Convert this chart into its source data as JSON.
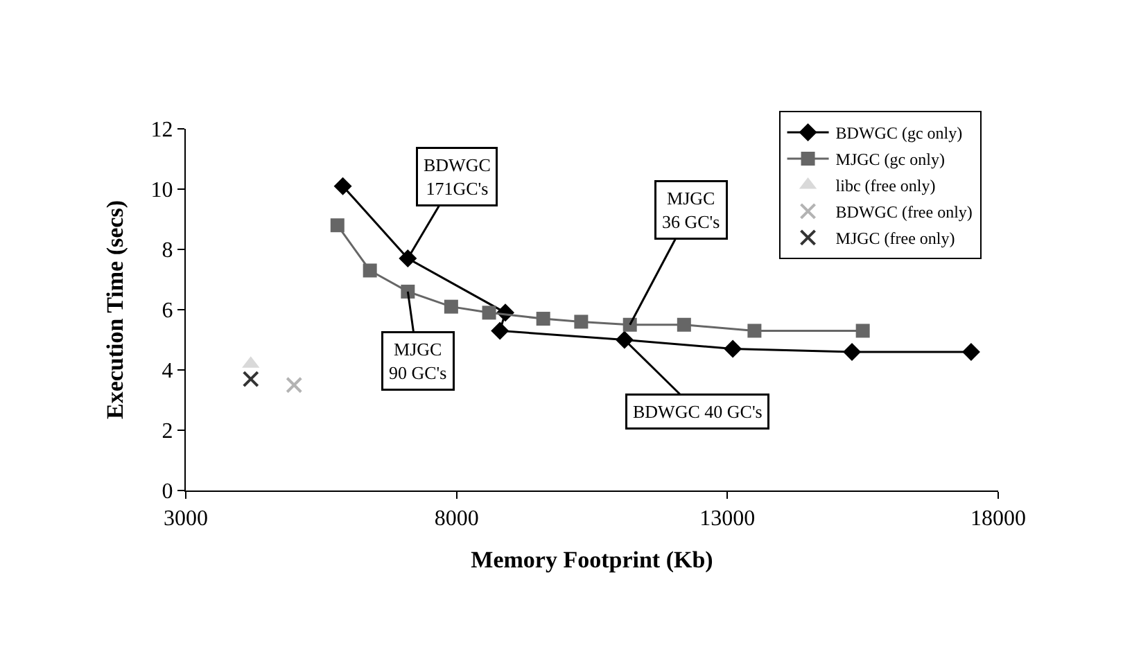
{
  "chart_data": {
    "type": "line",
    "xlabel": "Memory Footprint (Kb)",
    "ylabel": "Execution Time (secs)",
    "xlim": [
      3000,
      18000
    ],
    "xticks": [
      3000,
      8000,
      13000,
      18000
    ],
    "ylim": [
      0,
      12
    ],
    "yticks": [
      0,
      2,
      4,
      6,
      8,
      10,
      12
    ],
    "legend": "top right",
    "series": [
      {
        "name": "BDWGC (gc only)",
        "marker": "diamond",
        "color": "#000000",
        "x": [
          5900,
          7100,
          8900,
          8800,
          11100,
          13100,
          15300,
          17500
        ],
        "values": [
          10.1,
          7.7,
          5.9,
          5.3,
          5.0,
          4.7,
          4.6,
          4.6
        ]
      },
      {
        "name": "MJGC (gc only)",
        "marker": "square",
        "color": "#666666",
        "x": [
          5800,
          6400,
          7100,
          7900,
          8600,
          9600,
          10300,
          11200,
          12200,
          13500,
          15500
        ],
        "values": [
          8.8,
          7.3,
          6.6,
          6.1,
          5.9,
          5.7,
          5.6,
          5.5,
          5.5,
          5.3,
          5.3
        ]
      },
      {
        "name": "libc (free only)",
        "type": "scatter",
        "marker": "triangle",
        "color": "#d9d9d9",
        "x": [
          4200
        ],
        "values": [
          4.2
        ]
      },
      {
        "name": "BDWGC (free only)",
        "type": "scatter",
        "marker": "cross",
        "color": "#b3b3b3",
        "x": [
          5000
        ],
        "values": [
          3.5
        ]
      },
      {
        "name": "MJGC (free only)",
        "type": "scatter",
        "marker": "cross",
        "color": "#333333",
        "x": [
          4200
        ],
        "values": [
          3.7
        ]
      }
    ],
    "annotations": [
      {
        "text": "BDWGC\n171GC's",
        "x": 7100,
        "y": 7.7
      },
      {
        "text": "MJGC\n90 GC's",
        "x": 7100,
        "y": 6.6
      },
      {
        "text": "MJGC\n36 GC's",
        "x": 11200,
        "y": 5.5
      },
      {
        "text": "BDWGC 40 GC's",
        "x": 11100,
        "y": 5.0
      }
    ]
  }
}
